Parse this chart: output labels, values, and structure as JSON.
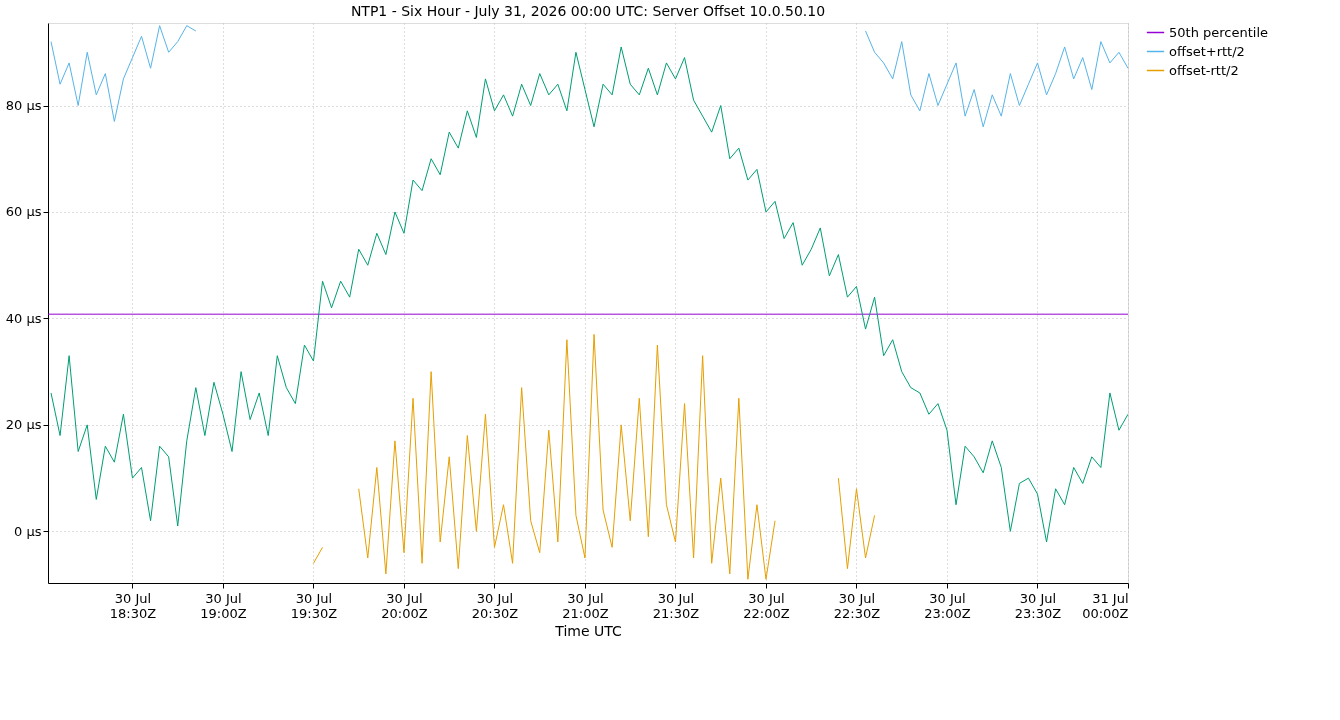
{
  "chart_data": {
    "type": "line",
    "title": "NTP1 - Six Hour - July 31, 2026 00:00 UTC: Server Offset 10.0.50.10",
    "xlabel": "Time UTC",
    "x": [
      "2026-07-30T18:03",
      "2026-07-30T18:06",
      "2026-07-30T18:09",
      "2026-07-30T18:12",
      "2026-07-30T18:15",
      "2026-07-30T18:18",
      "2026-07-30T18:21",
      "2026-07-30T18:24",
      "2026-07-30T18:27",
      "2026-07-30T18:30",
      "2026-07-30T18:33",
      "2026-07-30T18:36",
      "2026-07-30T18:39",
      "2026-07-30T18:42",
      "2026-07-30T18:45",
      "2026-07-30T18:48",
      "2026-07-30T18:51",
      "2026-07-30T18:54",
      "2026-07-30T18:57",
      "2026-07-30T19:00",
      "2026-07-30T19:03",
      "2026-07-30T19:06",
      "2026-07-30T19:09",
      "2026-07-30T19:12",
      "2026-07-30T19:15",
      "2026-07-30T19:18",
      "2026-07-30T19:21",
      "2026-07-30T19:24",
      "2026-07-30T19:27",
      "2026-07-30T19:30",
      "2026-07-30T19:33",
      "2026-07-30T19:36",
      "2026-07-30T19:39",
      "2026-07-30T19:42",
      "2026-07-30T19:45",
      "2026-07-30T19:48",
      "2026-07-30T19:51",
      "2026-07-30T19:54",
      "2026-07-30T19:57",
      "2026-07-30T20:00",
      "2026-07-30T20:03",
      "2026-07-30T20:06",
      "2026-07-30T20:09",
      "2026-07-30T20:12",
      "2026-07-30T20:15",
      "2026-07-30T20:18",
      "2026-07-30T20:21",
      "2026-07-30T20:24",
      "2026-07-30T20:27",
      "2026-07-30T20:30",
      "2026-07-30T20:33",
      "2026-07-30T20:36",
      "2026-07-30T20:39",
      "2026-07-30T20:42",
      "2026-07-30T20:45",
      "2026-07-30T20:48",
      "2026-07-30T20:51",
      "2026-07-30T20:54",
      "2026-07-30T20:57",
      "2026-07-30T21:00",
      "2026-07-30T21:03",
      "2026-07-30T21:06",
      "2026-07-30T21:09",
      "2026-07-30T21:12",
      "2026-07-30T21:15",
      "2026-07-30T21:18",
      "2026-07-30T21:21",
      "2026-07-30T21:24",
      "2026-07-30T21:27",
      "2026-07-30T21:30",
      "2026-07-30T21:33",
      "2026-07-30T21:36",
      "2026-07-30T21:39",
      "2026-07-30T21:42",
      "2026-07-30T21:45",
      "2026-07-30T21:48",
      "2026-07-30T21:51",
      "2026-07-30T21:54",
      "2026-07-30T21:57",
      "2026-07-30T22:00",
      "2026-07-30T22:03",
      "2026-07-30T22:06",
      "2026-07-30T22:09",
      "2026-07-30T22:12",
      "2026-07-30T22:15",
      "2026-07-30T22:18",
      "2026-07-30T22:21",
      "2026-07-30T22:24",
      "2026-07-30T22:27",
      "2026-07-30T22:30",
      "2026-07-30T22:33",
      "2026-07-30T22:36",
      "2026-07-30T22:39",
      "2026-07-30T22:42",
      "2026-07-30T22:45",
      "2026-07-30T22:48",
      "2026-07-30T22:51",
      "2026-07-30T22:54",
      "2026-07-30T22:57",
      "2026-07-30T23:00",
      "2026-07-30T23:03",
      "2026-07-30T23:06",
      "2026-07-30T23:09",
      "2026-07-30T23:12",
      "2026-07-30T23:15",
      "2026-07-30T23:18",
      "2026-07-30T23:21",
      "2026-07-30T23:24",
      "2026-07-30T23:27",
      "2026-07-30T23:30",
      "2026-07-30T23:33",
      "2026-07-30T23:36",
      "2026-07-30T23:39",
      "2026-07-30T23:42",
      "2026-07-30T23:45",
      "2026-07-30T23:48",
      "2026-07-30T23:51",
      "2026-07-30T23:54",
      "2026-07-30T23:57",
      "2026-07-31T00:00"
    ],
    "series": [
      {
        "name": "50th percentile",
        "color": "#9400d3",
        "x": [
          "2026-07-30T18:02",
          "2026-07-31T00:00"
        ],
        "values": [
          40.8,
          40.8
        ]
      },
      {
        "color": "#009e73",
        "values": [
          26,
          18,
          33,
          15,
          20,
          6,
          16,
          13,
          22,
          10,
          12,
          2,
          16,
          14,
          1,
          17,
          27,
          18,
          28,
          22,
          15,
          30,
          21,
          26,
          18,
          33,
          27,
          24,
          35,
          32,
          47,
          42,
          47,
          44,
          53,
          50,
          56,
          52,
          60,
          56,
          66,
          64,
          70,
          67,
          75,
          72,
          79,
          74,
          85,
          79,
          82,
          78,
          84,
          80,
          86,
          82,
          84,
          79,
          90,
          83,
          76,
          84,
          82,
          91,
          84,
          82,
          87,
          82,
          88,
          85,
          89,
          81,
          78,
          75,
          80,
          70,
          72,
          66,
          68,
          60,
          62,
          55,
          58,
          50,
          53,
          57,
          48,
          52,
          44,
          46,
          38,
          44,
          33,
          36,
          30,
          27,
          26,
          22,
          24,
          19,
          5,
          16,
          14,
          11,
          17,
          12,
          0,
          9,
          10,
          7,
          -2,
          8,
          5,
          12,
          9,
          14,
          12,
          26,
          19,
          22
        ]
      },
      {
        "name": "offset+rtt/2",
        "color": "#56b4e9",
        "values": [
          92,
          84,
          88,
          80,
          90,
          82,
          86,
          77,
          85,
          89,
          93,
          87,
          95,
          90,
          92,
          95,
          94,
          null,
          null,
          null,
          null,
          null,
          null,
          null,
          null,
          null,
          null,
          null,
          null,
          null,
          null,
          null,
          null,
          null,
          null,
          null,
          null,
          null,
          null,
          null,
          null,
          null,
          null,
          null,
          null,
          null,
          null,
          null,
          null,
          null,
          null,
          null,
          null,
          null,
          null,
          null,
          null,
          null,
          null,
          null,
          null,
          null,
          null,
          null,
          null,
          null,
          null,
          null,
          null,
          null,
          null,
          null,
          null,
          null,
          null,
          null,
          null,
          null,
          null,
          null,
          null,
          null,
          null,
          null,
          null,
          null,
          null,
          null,
          null,
          null,
          94,
          90,
          88,
          85,
          92,
          82,
          79,
          86,
          80,
          84,
          88,
          78,
          83,
          76,
          82,
          78,
          86,
          80,
          84,
          88,
          82,
          86,
          91,
          85,
          89,
          83,
          92,
          88,
          90,
          87
        ]
      },
      {
        "name": "offset-rtt/2",
        "color": "#e69f00",
        "values": [
          null,
          null,
          null,
          null,
          null,
          null,
          null,
          null,
          null,
          null,
          null,
          null,
          null,
          null,
          null,
          null,
          null,
          null,
          null,
          null,
          null,
          null,
          null,
          null,
          null,
          null,
          null,
          null,
          null,
          -6,
          -3,
          null,
          null,
          null,
          8,
          -5,
          12,
          -8,
          17,
          -4,
          25,
          -6,
          30,
          -2,
          14,
          -7,
          18,
          0,
          22,
          -3,
          5,
          -6,
          27,
          2,
          -4,
          19,
          -2,
          36,
          3,
          -5,
          37,
          4,
          -3,
          20,
          2,
          25,
          -1,
          35,
          5,
          -2,
          24,
          -5,
          33,
          -6,
          10,
          -8,
          25,
          -9,
          5,
          -9,
          2,
          null,
          null,
          null,
          null,
          null,
          null,
          10,
          -7,
          8,
          -5,
          3,
          null,
          null,
          null,
          null,
          null,
          null,
          null,
          null,
          null,
          null,
          null,
          null,
          null,
          null,
          null,
          null,
          null,
          null,
          null,
          null,
          null,
          null,
          null,
          null,
          null,
          null,
          null,
          null
        ]
      }
    ],
    "xlim": [
      "2026-07-30T18:02",
      "2026-07-31T00:00"
    ],
    "xticks": [
      {
        "value": "2026-07-30T18:30",
        "label": "30 Jul\n18:30Z"
      },
      {
        "value": "2026-07-30T19:00",
        "label": "30 Jul\n19:00Z"
      },
      {
        "value": "2026-07-30T19:30",
        "label": "30 Jul\n19:30Z"
      },
      {
        "value": "2026-07-30T20:00",
        "label": "30 Jul\n20:00Z"
      },
      {
        "value": "2026-07-30T20:30",
        "label": "30 Jul\n20:30Z"
      },
      {
        "value": "2026-07-30T21:00",
        "label": "30 Jul\n21:00Z"
      },
      {
        "value": "2026-07-30T21:30",
        "label": "30 Jul\n21:30Z"
      },
      {
        "value": "2026-07-30T22:00",
        "label": "30 Jul\n22:00Z"
      },
      {
        "value": "2026-07-30T22:30",
        "label": "30 Jul\n22:30Z"
      },
      {
        "value": "2026-07-30T23:00",
        "label": "30 Jul\n23:00Z"
      },
      {
        "value": "2026-07-30T23:30",
        "label": "30 Jul\n23:30Z"
      },
      {
        "value": "2026-07-31T00:00",
        "label": "31 Jul\n00:00Z"
      }
    ],
    "ylim": [
      -9.7,
      95.5
    ],
    "yticks": [
      {
        "value": 0,
        "label": "0 µs"
      },
      {
        "value": 20,
        "label": "20 µs"
      },
      {
        "value": 40,
        "label": "40 µs"
      },
      {
        "value": 60,
        "label": "60 µs"
      },
      {
        "value": 80,
        "label": "80 µs"
      }
    ],
    "grid": true,
    "legend": "right",
    "marker": "none",
    "line_style": "solid"
  }
}
